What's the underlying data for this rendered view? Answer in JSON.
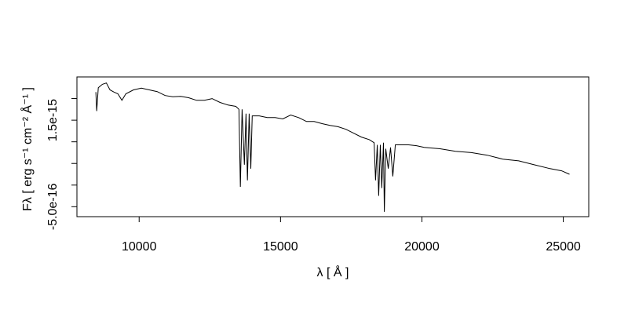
{
  "chart_data": {
    "type": "line",
    "xlabel": "λ [ Å ]",
    "ylabel": "Fλ [ erg s⁻¹ cm⁻² Å⁻¹ ]",
    "xlim": [
      7800,
      25900
    ],
    "ylim": [
      -7.3e-16,
      2.5e-15
    ],
    "xticks": [
      10000,
      15000,
      20000,
      25000
    ],
    "yticks": [
      {
        "value": -5e-16,
        "label": "-5.0e-16"
      },
      {
        "value": 0,
        "label": null
      },
      {
        "value": 5e-16,
        "label": null
      },
      {
        "value": 1e-15,
        "label": null
      },
      {
        "value": 1.5e-15,
        "label": "1.5e-15"
      },
      {
        "value": 2e-15,
        "label": null
      }
    ],
    "color": "#000000",
    "x": [
      8470,
      8500,
      8556,
      8700,
      8840,
      8970,
      9110,
      9250,
      9390,
      9530,
      9800,
      10080,
      10360,
      10640,
      10920,
      11190,
      11470,
      11750,
      12030,
      12310,
      12580,
      12860,
      13140,
      13420,
      13530,
      13580,
      13640,
      13720,
      13780,
      13830,
      13890,
      13950,
      14000,
      14250,
      14530,
      14810,
      15080,
      15360,
      15640,
      15920,
      16190,
      16470,
      16750,
      17030,
      17310,
      17580,
      17860,
      18140,
      18310,
      18360,
      18420,
      18470,
      18530,
      18580,
      18640,
      18670,
      18720,
      18810,
      18890,
      18970,
      19060,
      19250,
      19530,
      19810,
      20080,
      20640,
      21190,
      21750,
      22310,
      22860,
      23420,
      23970,
      24530,
      24940,
      25220
    ],
    "values": [
      2.15e-15,
      1.71e-15,
      2.25e-15,
      2.33e-15,
      2.36e-15,
      2.2e-15,
      2.15e-15,
      2.11e-15,
      1.96e-15,
      2.11e-15,
      2.2e-15,
      2.24e-15,
      2.2e-15,
      2.16e-15,
      2.07e-15,
      2.04e-15,
      2.05e-15,
      2.02e-15,
      1.96e-15,
      1.96e-15,
      2e-15,
      1.91e-15,
      1.85e-15,
      1.82e-15,
      1.75e-15,
      -4e-17,
      1.75e-15,
      4.7e-16,
      1.65e-15,
      1.1e-16,
      1.65e-15,
      3.8e-16,
      1.6e-15,
      1.6e-15,
      1.56e-15,
      1.56e-15,
      1.53e-15,
      1.62e-15,
      1.56e-15,
      1.47e-15,
      1.47e-15,
      1.42e-15,
      1.38e-15,
      1.35e-15,
      1.29e-15,
      1.2e-15,
      1.11e-15,
      1.05e-15,
      9.8e-16,
      1.1e-16,
      9.3e-16,
      -2.5e-16,
      9.3e-16,
      -7e-17,
      9.8e-16,
      -6.2e-16,
      8.4e-16,
      3.8e-16,
      8.7e-16,
      2e-16,
      9.3e-16,
      9.3e-16,
      9.3e-16,
      9.1e-16,
      8.7e-16,
      8.4e-16,
      7.8e-16,
      7.5e-16,
      6.9e-16,
      6e-16,
      5.6e-16,
      4.7e-16,
      3.8e-16,
      3.3e-16,
      2.5e-16
    ]
  }
}
